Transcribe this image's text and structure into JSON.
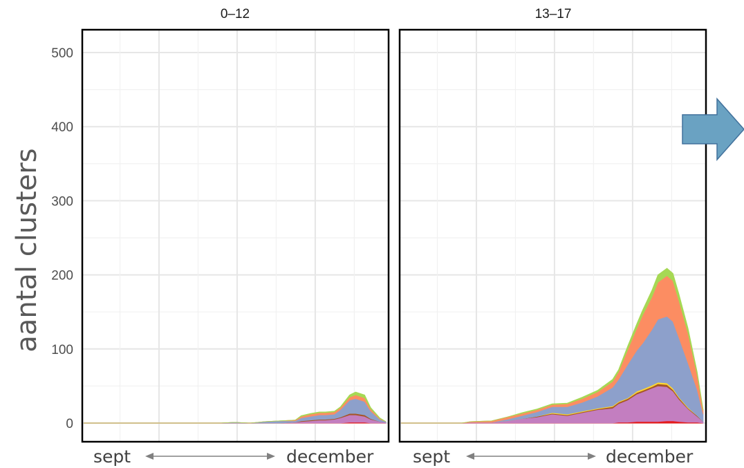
{
  "chart_data": {
    "type": "area",
    "stacked": true,
    "ylabel": "aantal clusters",
    "ylim": [
      0,
      530
    ],
    "yticks": [
      0,
      100,
      200,
      300,
      400,
      500
    ],
    "grid": true,
    "legend": "none",
    "x_caption": {
      "start": "sept",
      "end": "december"
    },
    "colors": {
      "red": "#e41a1c",
      "purple": "#c37ec0",
      "brown": "#a65628",
      "yellow": "#ffd92f",
      "blue": "#8da0cb",
      "orange": "#fc8d62",
      "green": "#a6d854",
      "arrow": "#6aa2c2"
    },
    "panels": [
      {
        "title": "0–12",
        "x": [
          0,
          30,
          45,
          50,
          55,
          60,
          65,
          70,
          72,
          75,
          78,
          80,
          83,
          85,
          88,
          90,
          93,
          95,
          98,
          100
        ],
        "series": [
          {
            "color": "red",
            "values": [
              0,
              0,
              0,
              0,
              0,
              0,
              0,
              0,
              0,
              0,
              0,
              0,
              0,
              0,
              1,
              1,
              1,
              0,
              0,
              0
            ]
          },
          {
            "color": "purple",
            "values": [
              0,
              0,
              0,
              0,
              0,
              0,
              0,
              1,
              2,
              3,
              4,
              4,
              5,
              7,
              10,
              10,
              8,
              5,
              2,
              1
            ]
          },
          {
            "color": "brown",
            "values": [
              0,
              0,
              0,
              0,
              0,
              0,
              0,
              0,
              1,
              1,
              1,
              1,
              1,
              1,
              2,
              2,
              2,
              1,
              0,
              0
            ]
          },
          {
            "color": "blue",
            "values": [
              0,
              0,
              0,
              1,
              0,
              2,
              3,
              2,
              4,
              5,
              6,
              6,
              6,
              10,
              18,
              20,
              18,
              10,
              3,
              1
            ]
          },
          {
            "color": "orange",
            "values": [
              0,
              0,
              0,
              0,
              0,
              0,
              0,
              1,
              2,
              3,
              3,
              3,
              3,
              3,
              4,
              5,
              5,
              3,
              1,
              0
            ]
          },
          {
            "color": "green",
            "values": [
              0,
              0,
              0,
              0,
              0,
              0,
              0,
              0,
              1,
              1,
              1,
              1,
              1,
              1,
              3,
              4,
              4,
              2,
              1,
              0
            ]
          }
        ]
      },
      {
        "title": "13–17",
        "x": [
          0,
          20,
          23,
          30,
          35,
          40,
          45,
          50,
          55,
          60,
          65,
          70,
          72,
          75,
          78,
          80,
          83,
          85,
          88,
          90,
          92,
          95,
          98,
          100
        ],
        "series": [
          {
            "color": "red",
            "values": [
              0,
              0,
              0,
              0,
              0,
              0,
              0,
              0,
              0,
              0,
              0,
              0,
              1,
              1,
              2,
              2,
              2,
              2,
              3,
              3,
              2,
              1,
              1,
              0
            ]
          },
          {
            "color": "purple",
            "values": [
              0,
              0,
              1,
              1,
              3,
              6,
              8,
              12,
              10,
              14,
              18,
              20,
              25,
              30,
              37,
              40,
              45,
              48,
              46,
              40,
              30,
              18,
              8,
              2
            ]
          },
          {
            "color": "brown",
            "values": [
              0,
              0,
              0,
              0,
              0,
              0,
              1,
              1,
              1,
              1,
              1,
              2,
              2,
              2,
              2,
              2,
              2,
              3,
              3,
              2,
              2,
              1,
              1,
              0
            ]
          },
          {
            "color": "yellow",
            "values": [
              0,
              0,
              0,
              0,
              0,
              0,
              0,
              1,
              1,
              1,
              1,
              1,
              1,
              1,
              2,
              2,
              2,
              2,
              2,
              2,
              1,
              1,
              0,
              0
            ]
          },
          {
            "color": "blue",
            "values": [
              0,
              0,
              0,
              0,
              2,
              4,
              6,
              8,
              10,
              12,
              16,
              25,
              30,
              45,
              55,
              62,
              75,
              85,
              90,
              90,
              80,
              60,
              35,
              10
            ]
          },
          {
            "color": "orange",
            "values": [
              0,
              0,
              1,
              2,
              3,
              3,
              3,
              3,
              4,
              5,
              6,
              8,
              10,
              20,
              30,
              38,
              44,
              50,
              55,
              55,
              50,
              40,
              20,
              5
            ]
          },
          {
            "color": "green",
            "values": [
              0,
              0,
              0,
              0,
              0,
              1,
              1,
              1,
              1,
              2,
              2,
              3,
              3,
              5,
              6,
              7,
              9,
              10,
              10,
              10,
              9,
              7,
              4,
              1
            ]
          }
        ]
      }
    ]
  }
}
